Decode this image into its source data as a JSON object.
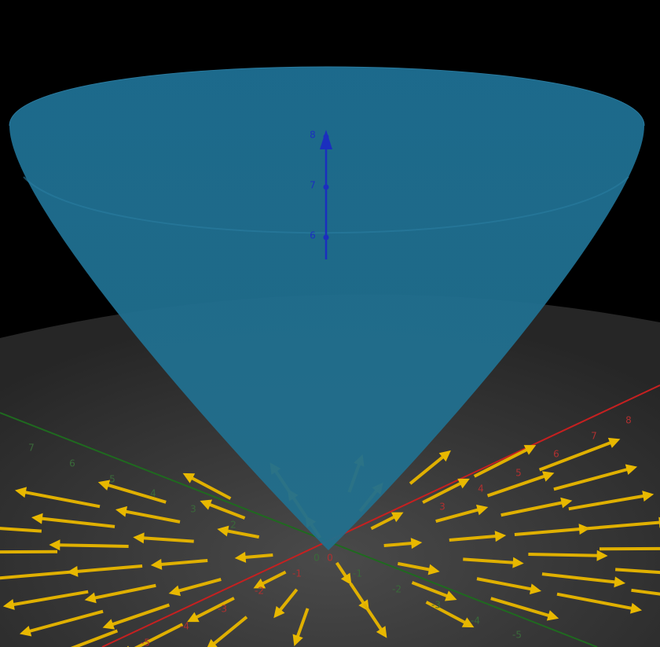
{
  "z_axis": {
    "ticks": [
      6,
      7,
      8
    ]
  },
  "x_axis": {
    "ticks": [
      -5,
      -4,
      -3,
      -2,
      -1,
      0,
      3,
      4,
      5,
      6,
      7,
      8
    ]
  },
  "y_axis": {
    "ticks": [
      7,
      6,
      5,
      4,
      3,
      2,
      0,
      -1,
      -2,
      -3,
      -4,
      -5
    ]
  }
}
